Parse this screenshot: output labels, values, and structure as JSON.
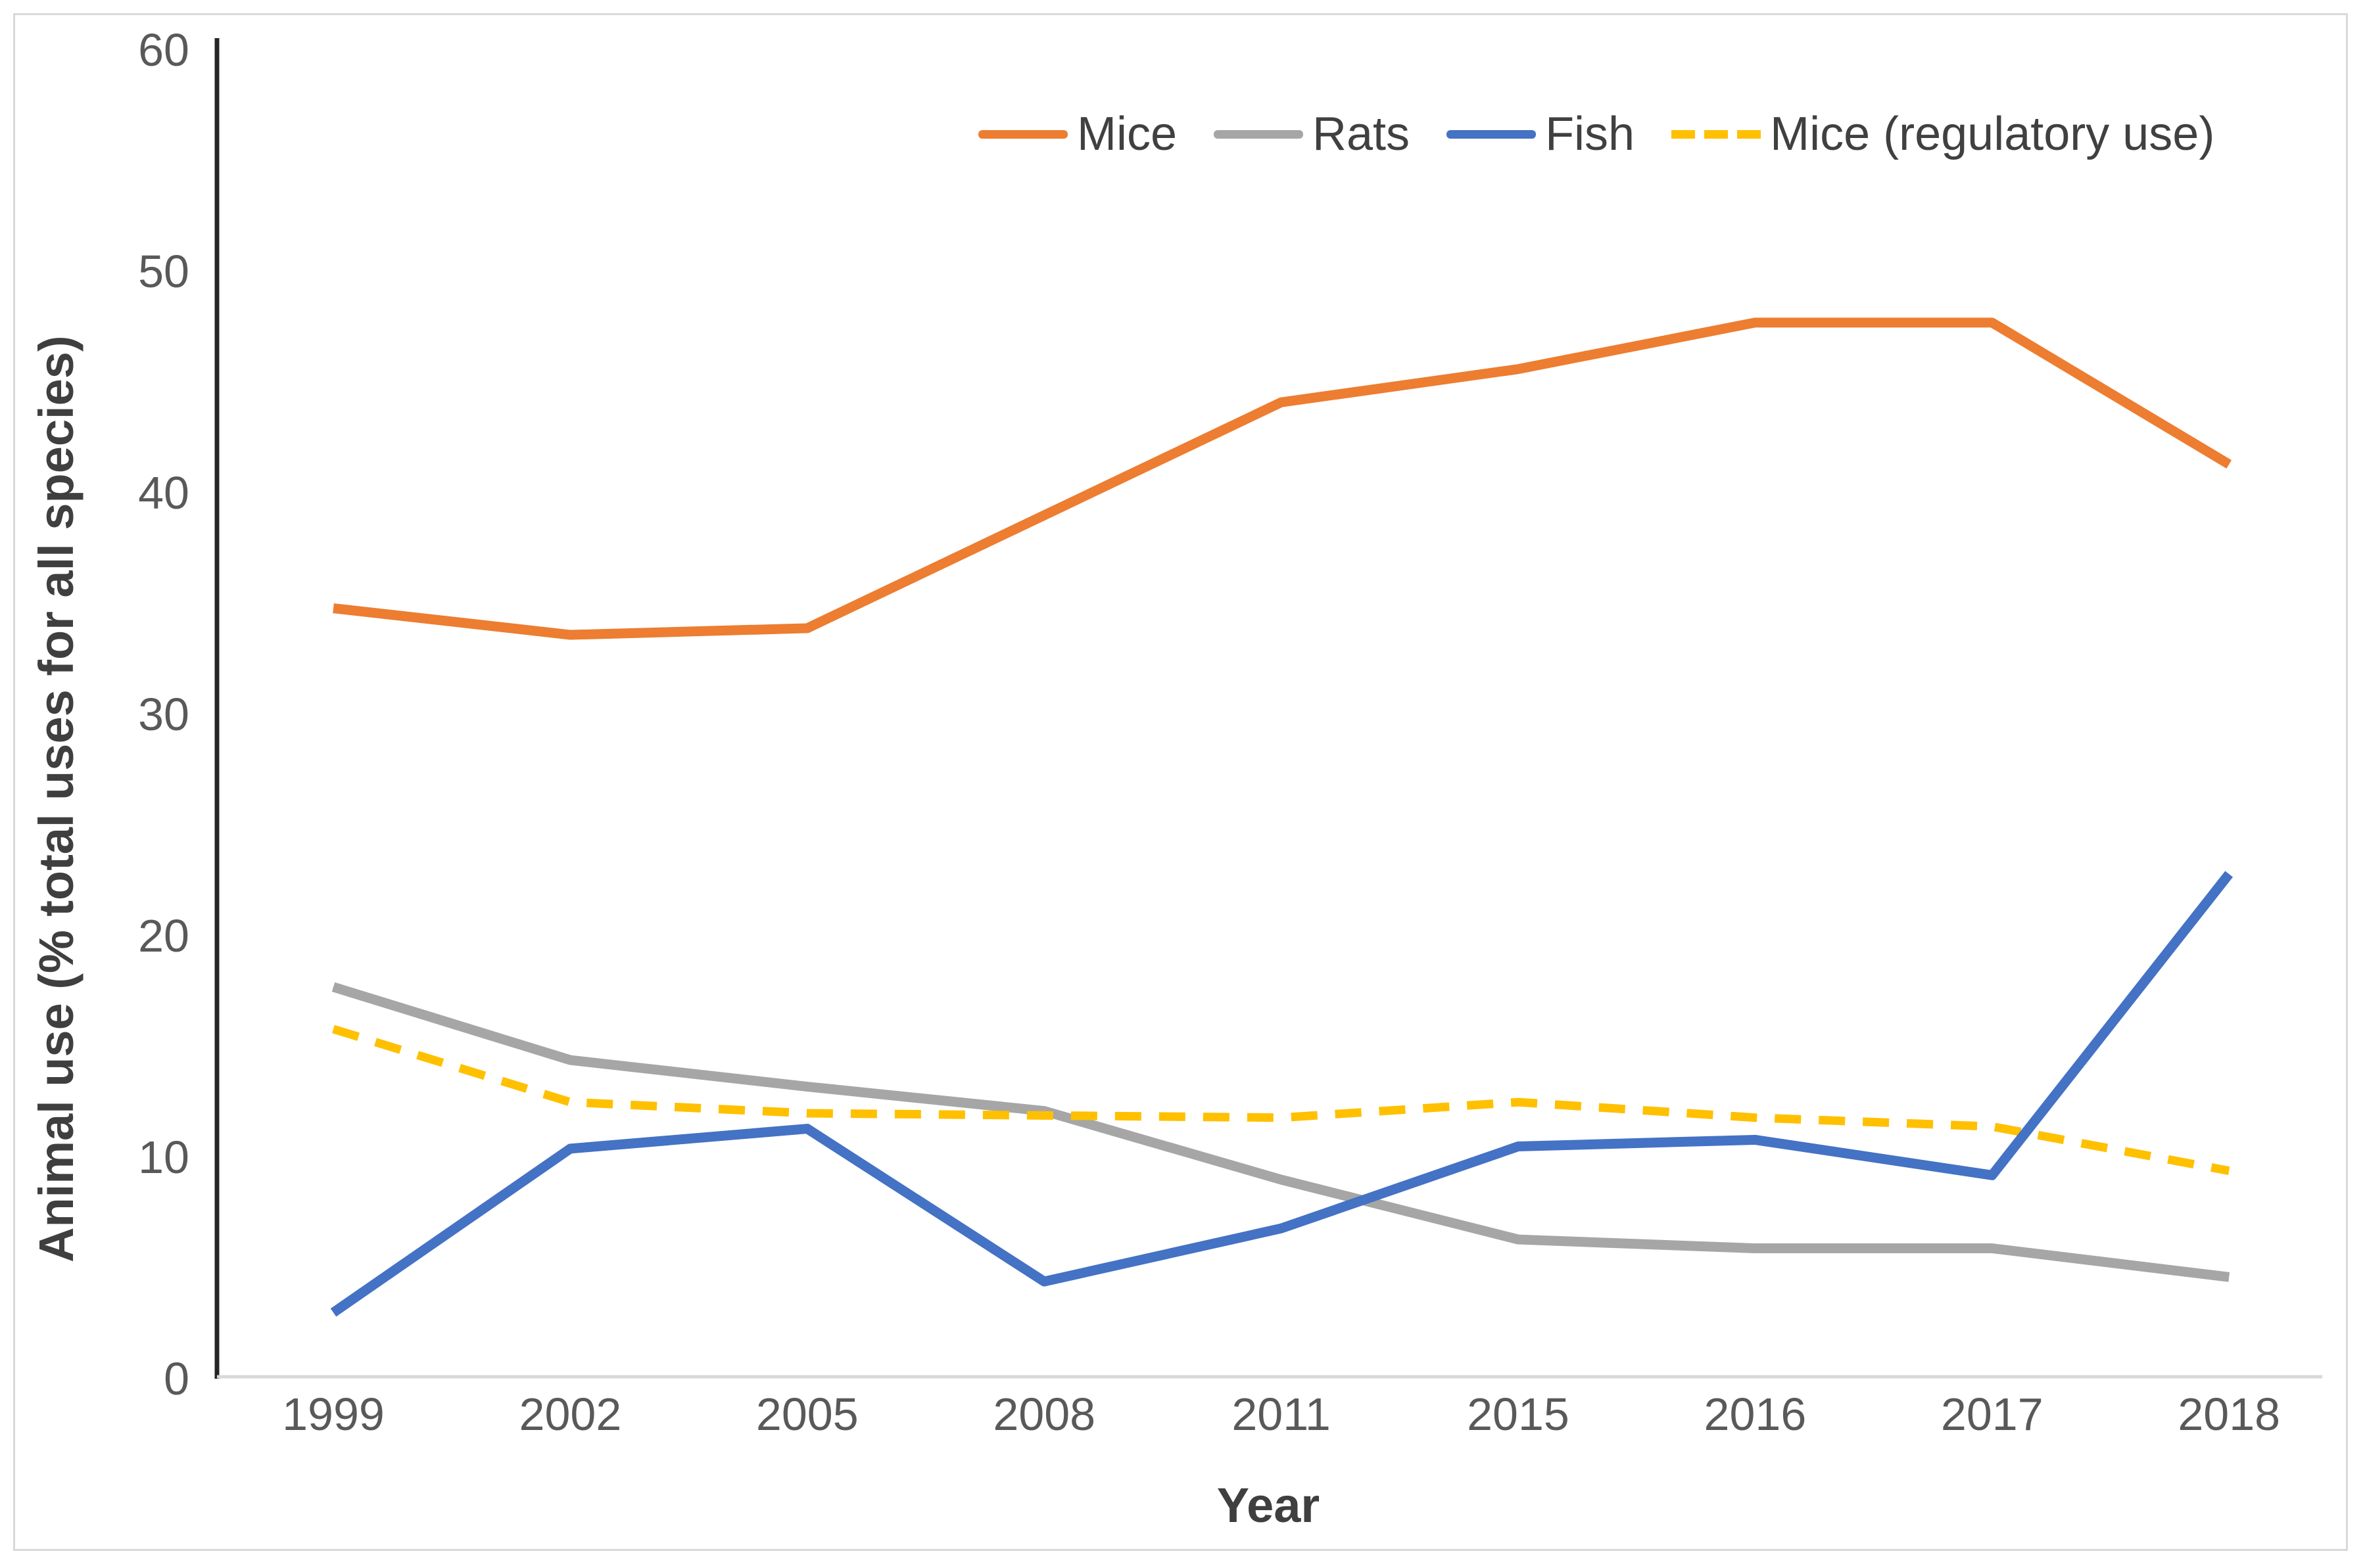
{
  "figure": {
    "y_axis_title": "Animal use (% total uses for all species)",
    "x_axis_title": "Year"
  },
  "colors": {
    "mice": "#ED7D31",
    "rats": "#A6A6A6",
    "fish": "#4472C4",
    "mice_regulatory": "#FFC000",
    "tick_text": "#595959",
    "axis_title_text": "#3F3F3F",
    "y_axis_line": "#262626",
    "x_axis_line": "#D9D9D9",
    "frame_border": "#D9D9D9"
  },
  "chart_data": {
    "type": "line",
    "title": "",
    "xlabel": "Year",
    "ylabel": "Animal use (% total uses for all species)",
    "categories": [
      "1999",
      "2002",
      "2005",
      "2008",
      "2011",
      "2015",
      "2016",
      "2017",
      "2018"
    ],
    "series": [
      {
        "name": "Mice",
        "color": "#ED7D31",
        "line_style": "solid",
        "values": [
          34.7,
          33.5,
          33.8,
          38.9,
          44.0,
          45.5,
          47.6,
          47.6,
          41.2
        ]
      },
      {
        "name": "Rats",
        "color": "#A6A6A6",
        "line_style": "solid",
        "values": [
          17.6,
          14.3,
          13.1,
          12.0,
          8.9,
          6.2,
          5.8,
          5.8,
          4.5
        ]
      },
      {
        "name": "Fish",
        "color": "#4472C4",
        "line_style": "solid",
        "values": [
          2.9,
          10.3,
          11.2,
          4.3,
          6.7,
          10.4,
          10.7,
          9.1,
          22.7
        ]
      },
      {
        "name": "Mice (regulatory use)",
        "color": "#FFC000",
        "line_style": "dashed",
        "values": [
          15.7,
          12.4,
          11.9,
          11.8,
          11.7,
          12.4,
          11.7,
          11.3,
          9.3
        ]
      }
    ],
    "ylim": [
      0,
      60
    ],
    "y_ticks": [
      0,
      10,
      20,
      30,
      40,
      50,
      60
    ],
    "grid": false,
    "legend_position": "top"
  }
}
